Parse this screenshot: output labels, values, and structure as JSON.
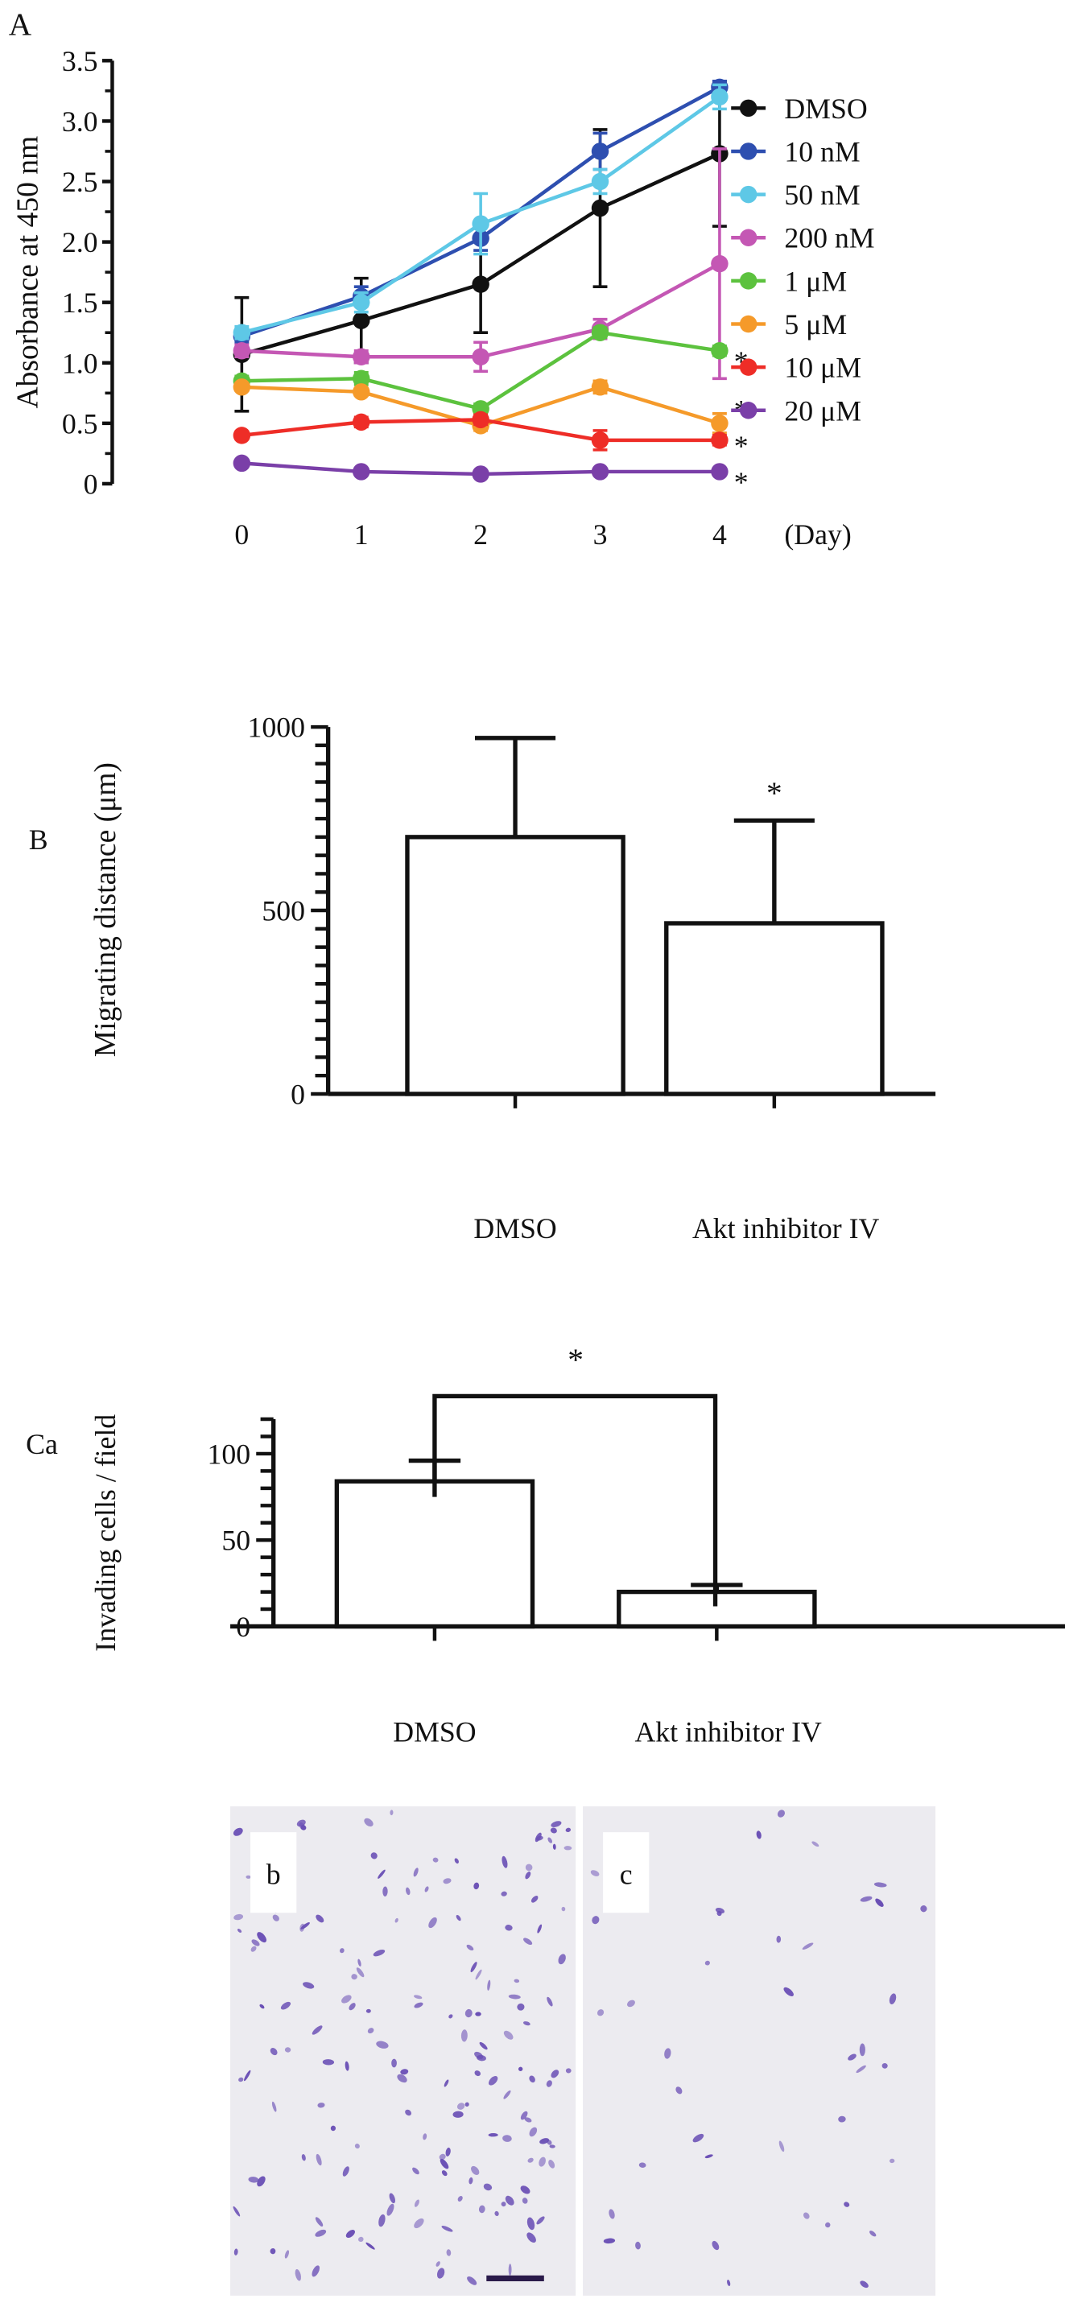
{
  "chart_data": [
    {
      "panel_label": "A",
      "type": "line",
      "ylabel": "Absorbance at 450 nm",
      "xlabel": "(Day)",
      "x": [
        0,
        1,
        2,
        3,
        4
      ],
      "x_ticks": [
        "0",
        "1",
        "2",
        "3",
        "4"
      ],
      "y_ticks": [
        "0",
        "0.5",
        "1.0",
        "1.5",
        "2.0",
        "2.5",
        "3.0",
        "3.5"
      ],
      "ylim": [
        0,
        3.5
      ],
      "legend_placement": "right",
      "series": [
        {
          "name": "DMSO",
          "color": "#111111",
          "values": [
            1.07,
            1.35,
            1.65,
            2.28,
            2.73
          ],
          "errors": [
            0.47,
            0.35,
            0.4,
            0.65,
            0.6
          ],
          "asterisk": ""
        },
        {
          "name": "10 nM",
          "color": "#2e4fb0",
          "values": [
            1.22,
            1.55,
            2.03,
            2.75,
            3.28
          ],
          "errors": [
            0.05,
            0.08,
            0.1,
            0.15,
            0.05
          ],
          "asterisk": ""
        },
        {
          "name": "50 nM",
          "color": "#5ec8e6",
          "values": [
            1.25,
            1.5,
            2.15,
            2.5,
            3.2
          ],
          "errors": [
            0.05,
            0.08,
            0.25,
            0.1,
            0.1
          ],
          "asterisk": ""
        },
        {
          "name": "200 nM",
          "color": "#c457b4",
          "values": [
            1.1,
            1.05,
            1.05,
            1.28,
            1.82
          ],
          "errors": [
            0.05,
            0.05,
            0.12,
            0.08,
            0.95
          ],
          "asterisk": ""
        },
        {
          "name": "1 μM",
          "color": "#5cc23e",
          "values": [
            0.85,
            0.87,
            0.62,
            1.25,
            1.1
          ],
          "errors": [
            0.04,
            0.05,
            0.04,
            0.04,
            0.04
          ],
          "asterisk": "*"
        },
        {
          "name": "5 μM",
          "color": "#f59a2a",
          "values": [
            0.8,
            0.76,
            0.48,
            0.8,
            0.5
          ],
          "errors": [
            0.03,
            0.03,
            0.04,
            0.05,
            0.08
          ],
          "asterisk": "*"
        },
        {
          "name": "10 μM",
          "color": "#ee2d27",
          "values": [
            0.4,
            0.51,
            0.53,
            0.36,
            0.36
          ],
          "errors": [
            0.03,
            0.04,
            0.04,
            0.08,
            0.04
          ],
          "asterisk": "*"
        },
        {
          "name": "20 μM",
          "color": "#7a3fa8",
          "values": [
            0.17,
            0.1,
            0.08,
            0.1,
            0.1
          ],
          "errors": [
            0.02,
            0.02,
            0.02,
            0.02,
            0.02
          ],
          "asterisk": "*"
        }
      ]
    },
    {
      "panel_label": "B",
      "type": "bar",
      "ylabel": "Migrating distance (μm)",
      "categories": [
        "DMSO",
        "Akt inhibitor IV"
      ],
      "values": [
        700,
        465
      ],
      "errors": [
        270,
        280
      ],
      "asterisks": [
        "",
        "*"
      ],
      "y_ticks": [
        "0",
        "500",
        "1000"
      ],
      "ylim": [
        0,
        1000
      ]
    },
    {
      "panel_label": "Ca",
      "type": "bar",
      "ylabel": "Invading cells / field",
      "categories": [
        "DMSO",
        "Akt inhibitor IV"
      ],
      "values": [
        84,
        20
      ],
      "errors": [
        12,
        4
      ],
      "bracket_asterisk": "*",
      "y_ticks": [
        "0",
        "50",
        "100"
      ],
      "ylim": [
        0,
        120
      ]
    }
  ],
  "micrographs": [
    {
      "label": "b",
      "density": "high"
    },
    {
      "label": "c",
      "density": "low"
    }
  ],
  "colors": {
    "stain": "#6a4fb5",
    "micrograph_bg": "#ecebf0"
  }
}
